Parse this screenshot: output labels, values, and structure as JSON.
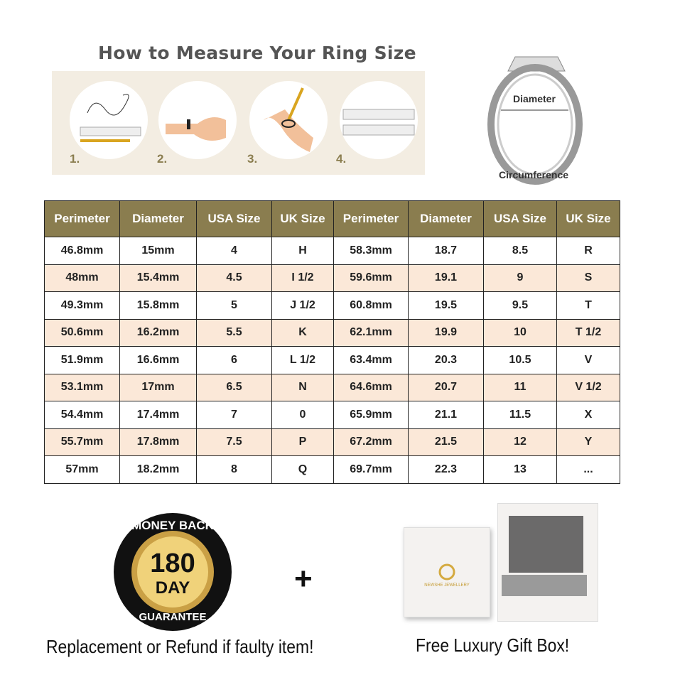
{
  "title": "How to Measure Your Ring Size",
  "steps": [
    "1.",
    "2.",
    "3.",
    "4."
  ],
  "ring_diagram": {
    "diameter_label": "Diameter",
    "circumference_label": "Circumference"
  },
  "table": {
    "headers": [
      "Perimeter",
      "Diameter",
      "USA Size",
      "UK Size",
      "Perimeter",
      "Diameter",
      "USA Size",
      "UK Size"
    ],
    "rows": [
      [
        "46.8mm",
        "15mm",
        "4",
        "H",
        "58.3mm",
        "18.7",
        "8.5",
        "R"
      ],
      [
        "48mm",
        "15.4mm",
        "4.5",
        "I 1/2",
        "59.6mm",
        "19.1",
        "9",
        "S"
      ],
      [
        "49.3mm",
        "15.8mm",
        "5",
        "J 1/2",
        "60.8mm",
        "19.5",
        "9.5",
        "T"
      ],
      [
        "50.6mm",
        "16.2mm",
        "5.5",
        "K",
        "62.1mm",
        "19.9",
        "10",
        "T 1/2"
      ],
      [
        "51.9mm",
        "16.6mm",
        "6",
        "L 1/2",
        "63.4mm",
        "20.3",
        "10.5",
        "V"
      ],
      [
        "53.1mm",
        "17mm",
        "6.5",
        "N",
        "64.6mm",
        "20.7",
        "11",
        "V 1/2"
      ],
      [
        "54.4mm",
        "17.4mm",
        "7",
        "0",
        "65.9mm",
        "21.1",
        "11.5",
        "X"
      ],
      [
        "55.7mm",
        "17.8mm",
        "7.5",
        "P",
        "67.2mm",
        "21.5",
        "12",
        "Y"
      ],
      [
        "57mm",
        "18.2mm",
        "8",
        "Q",
        "69.7mm",
        "22.3",
        "13",
        "..."
      ]
    ],
    "header_color": "#8a7d4f",
    "alt_row_color": "#fbe8d8"
  },
  "badge": {
    "top": "MONEY BACK",
    "number": "180",
    "unit": "DAY",
    "bottom": "GUARANTEE"
  },
  "plus": "+",
  "box_brand": "NEWSHE JEWELLERY",
  "caption_left": "Replacement or Refund if faulty item!",
  "caption_right": "Free Luxury Gift Box!"
}
